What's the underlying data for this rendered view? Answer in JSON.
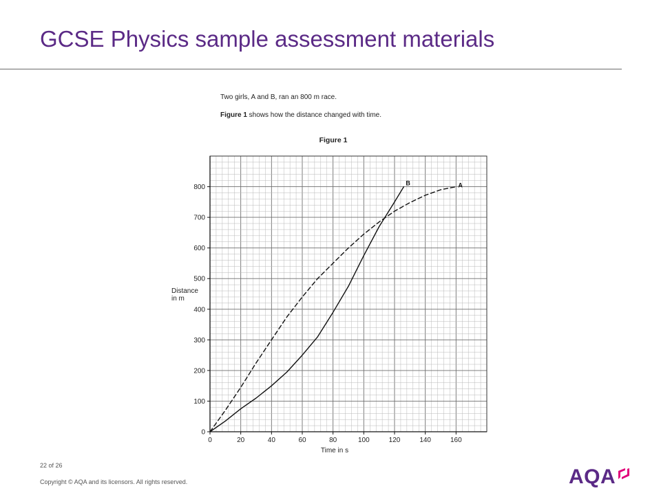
{
  "slide": {
    "title": "GCSE Physics sample assessment materials",
    "intro_line1": "Two girls, A and B, ran an 800 m race.",
    "intro_line2_bold": "Figure 1",
    "intro_line2_rest": " shows how the distance changed with time."
  },
  "footer": {
    "page": "22",
    "page_of": "of 26",
    "copyright": "Copyright © AQA and its licensors. All rights reserved.",
    "logo_text": "AQA"
  },
  "colors": {
    "title": "#5b2a86",
    "logo": "#5b2a86",
    "logo_accent": "#e2007a",
    "grid_minor": "#b8b8b8",
    "grid_major": "#6e6e6e",
    "curve": "#111111"
  },
  "chart_data": {
    "type": "line",
    "title": "Figure 1",
    "xlabel": "Time in s",
    "ylabel": "Distance in m",
    "ylabel_lines": [
      "Distance",
      "in m"
    ],
    "xlim": [
      0,
      180
    ],
    "ylim": [
      0,
      900
    ],
    "xticks": [
      "0",
      "20",
      "40",
      "60",
      "80",
      "100",
      "120",
      "140",
      "160"
    ],
    "yticks": [
      "0",
      "100",
      "200",
      "300",
      "400",
      "500",
      "600",
      "700",
      "800"
    ],
    "xtick_values": [
      0,
      20,
      40,
      60,
      80,
      100,
      120,
      140,
      160
    ],
    "ytick_values": [
      0,
      100,
      200,
      300,
      400,
      500,
      600,
      700,
      800
    ],
    "grid": true,
    "series": [
      {
        "name": "A",
        "style": "dashed",
        "x": [
          0,
          10,
          20,
          30,
          40,
          50,
          60,
          70,
          80,
          90,
          100,
          110,
          120,
          130,
          140,
          150,
          160
        ],
        "y": [
          0,
          70,
          145,
          225,
          300,
          375,
          440,
          500,
          550,
          600,
          645,
          685,
          720,
          748,
          772,
          790,
          800
        ]
      },
      {
        "name": "B",
        "style": "solid",
        "x": [
          0,
          10,
          20,
          30,
          40,
          50,
          60,
          70,
          80,
          90,
          100,
          110,
          115,
          120,
          126
        ],
        "y": [
          0,
          35,
          75,
          110,
          150,
          195,
          250,
          310,
          390,
          475,
          575,
          670,
          710,
          750,
          800
        ]
      }
    ]
  }
}
